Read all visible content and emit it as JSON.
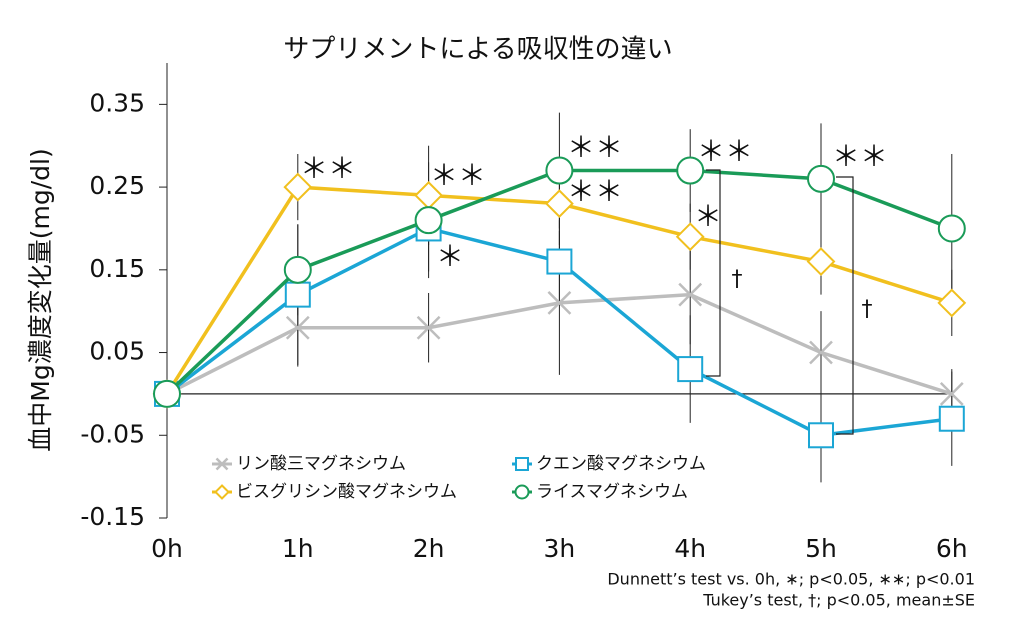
{
  "chart_data": {
    "type": "line",
    "title": "サプリメントによる吸収性の違い",
    "y_label": "血中Mg濃度変化量(mg/dl)",
    "categories": [
      "0h",
      "1h",
      "2h",
      "3h",
      "4h",
      "5h",
      "6h"
    ],
    "ylim": [
      -0.15,
      0.4
    ],
    "yticks": [
      -0.15,
      -0.05,
      0.05,
      0.15,
      0.25,
      0.35
    ],
    "series": [
      {
        "name": "リン酸三マグネシウム",
        "color": "#bdbdbd",
        "marker": "x",
        "values": [
          0,
          0.08,
          0.08,
          0.11,
          0.12,
          0.05,
          0
        ],
        "errors": [
          null,
          0.047,
          0.042,
          0.087,
          0.06,
          0.05,
          0.03
        ]
      },
      {
        "name": "クエン酸マグネシウム",
        "color": "#1ba6d5",
        "marker": "square",
        "values": [
          0,
          0.12,
          0.2,
          0.16,
          0.03,
          -0.05,
          -0.03
        ],
        "errors": [
          null,
          0.085,
          0.052,
          0.05,
          0.065,
          0.057,
          0.057
        ]
      },
      {
        "name": "ビスグリシン酸マグネシウム",
        "color": "#f1c01e",
        "marker": "diamond",
        "values": [
          0,
          0.25,
          0.24,
          0.23,
          0.19,
          0.16,
          0.11
        ],
        "errors": [
          null,
          0.04,
          0.06,
          0.05,
          0.04,
          0.04,
          0.04
        ]
      },
      {
        "name": "ライスマグネシウム",
        "color": "#1a9b58",
        "marker": "circle",
        "values": [
          0,
          0.15,
          0.21,
          0.27,
          0.27,
          0.26,
          0.2
        ],
        "errors": [
          null,
          0.055,
          0.07,
          0.07,
          0.05,
          0.067,
          0.09
        ]
      }
    ],
    "annotations": [
      "＊＊",
      "＊＊",
      "＊＊",
      "＊＊",
      "＊＊",
      "＊＊",
      "＊",
      "＊",
      "†",
      "†"
    ],
    "footnotes": [
      "Dunnett’s test vs. 0h, ∗; p<0.05, ∗∗; p<0.01",
      "Tukey’s test, †; p<0.05, mean±SE"
    ]
  }
}
